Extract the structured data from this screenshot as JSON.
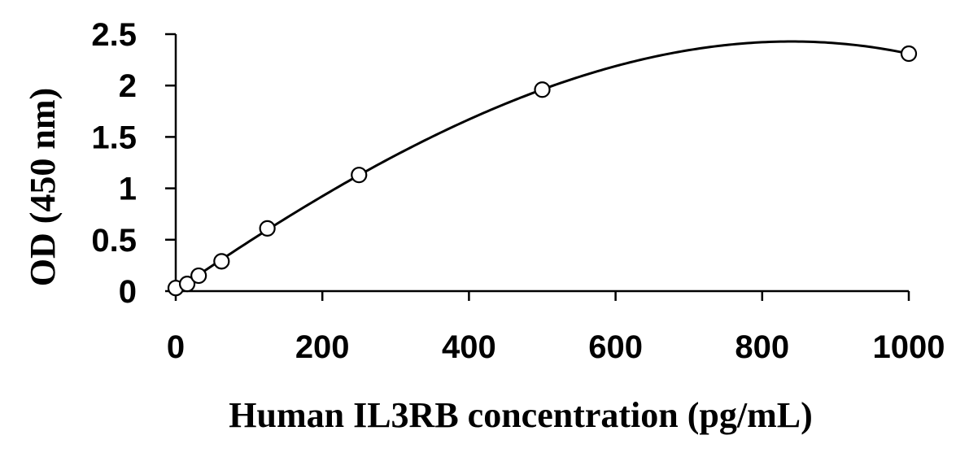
{
  "chart_data": {
    "type": "scatter",
    "title": "",
    "xlabel": "Human IL3RB concentration (pg/mL)",
    "ylabel": "OD (450 nm)",
    "xlim": [
      0,
      1000
    ],
    "ylim": [
      0,
      2.5
    ],
    "x_ticks": [
      0,
      200,
      400,
      600,
      800,
      1000
    ],
    "y_ticks": [
      0,
      0.5,
      1,
      1.5,
      2,
      2.5
    ],
    "x_tick_labels": [
      "0",
      "200",
      "400",
      "600",
      "800",
      "1000"
    ],
    "y_tick_labels": [
      "0",
      "0.5",
      "1",
      "1.5",
      "2",
      "2.5"
    ],
    "grid": false,
    "legend": "none",
    "marker": "open-circle",
    "trendline": "polynomial",
    "colors": {
      "line": "#000000",
      "marker": "#000000",
      "background": "#ffffff"
    },
    "series": [
      {
        "x": [
          0,
          15.6,
          31.25,
          62.5,
          125,
          250,
          500,
          1000
        ],
        "y": [
          0.03,
          0.07,
          0.15,
          0.29,
          0.61,
          1.13,
          1.96,
          2.31
        ]
      }
    ]
  }
}
